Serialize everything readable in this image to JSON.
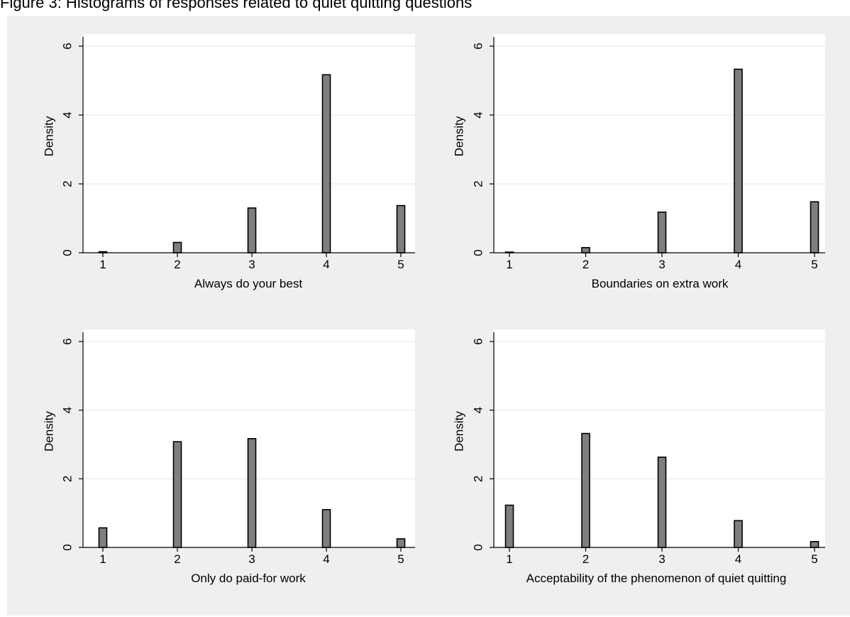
{
  "figure": {
    "title": "Figure 3: Histograms of responses related to quiet quitting questions"
  },
  "colors": {
    "outer_background": "#efefef",
    "plot_background": "#ffffff",
    "bar_fill": "#7f7f7f",
    "bar_stroke": "#000000",
    "gridline": "#e6e6e6",
    "axis": "#000000"
  },
  "chart_data": [
    {
      "type": "bar",
      "xlabel": "Always do your best",
      "ylabel": "Density",
      "categories": [
        1,
        2,
        3,
        4,
        5
      ],
      "values": [
        0.03,
        0.3,
        1.3,
        5.17,
        1.37
      ],
      "xticks": [
        "1",
        "2",
        "3",
        "4",
        "5"
      ],
      "yticks": [
        "0",
        "2",
        "4",
        "6"
      ],
      "ylim": [
        0,
        6
      ],
      "grid": true
    },
    {
      "type": "bar",
      "xlabel": "Boundaries on extra work",
      "ylabel": "Density",
      "categories": [
        1,
        2,
        3,
        4,
        5
      ],
      "values": [
        0.02,
        0.15,
        1.18,
        5.33,
        1.48
      ],
      "xticks": [
        "1",
        "2",
        "3",
        "4",
        "5"
      ],
      "yticks": [
        "0",
        "2",
        "4",
        "6"
      ],
      "ylim": [
        0,
        6
      ],
      "grid": true
    },
    {
      "type": "bar",
      "xlabel": "Only do paid-for work",
      "ylabel": "Density",
      "categories": [
        1,
        2,
        3,
        4,
        5
      ],
      "values": [
        0.57,
        3.08,
        3.17,
        1.1,
        0.25
      ],
      "xticks": [
        "1",
        "2",
        "3",
        "4",
        "5"
      ],
      "yticks": [
        "0",
        "2",
        "4",
        "6"
      ],
      "ylim": [
        0,
        6
      ],
      "grid": true
    },
    {
      "type": "bar",
      "xlabel": "Acceptability of the phenomenon of quiet quitting",
      "ylabel": "Density",
      "categories": [
        1,
        2,
        3,
        4,
        5
      ],
      "values": [
        1.23,
        3.32,
        2.63,
        0.78,
        0.17
      ],
      "xticks": [
        "1",
        "2",
        "3",
        "4",
        "5"
      ],
      "yticks": [
        "0",
        "2",
        "4",
        "6"
      ],
      "ylim": [
        0,
        6
      ],
      "grid": true
    }
  ]
}
